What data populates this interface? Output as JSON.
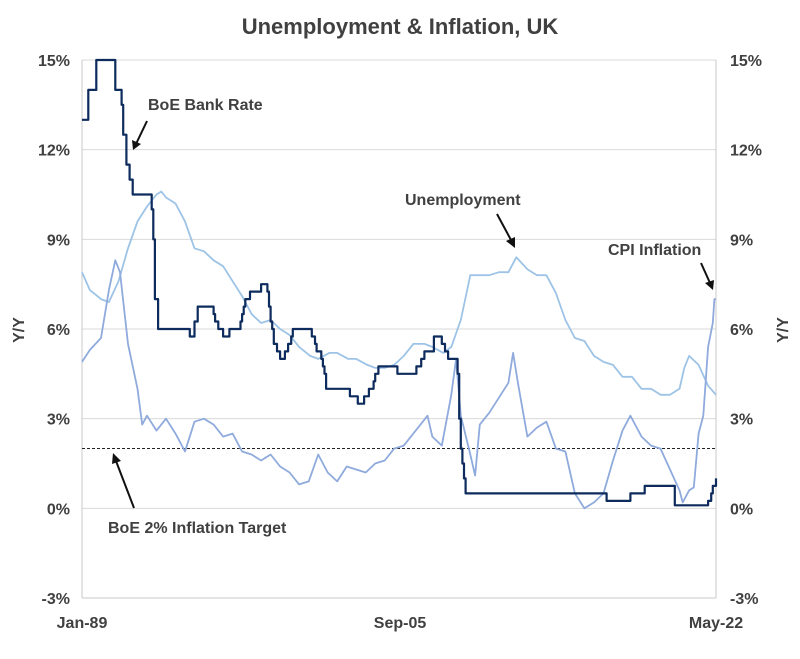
{
  "chart_data": {
    "type": "line",
    "title": "Unemployment & Inflation, UK",
    "xlabel": "",
    "ylabel": "Y/Y",
    "ylabel_right": "Y/Y",
    "x_start": "1989-01",
    "x_end": "2022-05",
    "x_tick_labels": [
      "Jan-89",
      "Sep-05",
      "May-22"
    ],
    "ylim": [
      -3,
      15
    ],
    "y_ticks": [
      -3,
      0,
      3,
      6,
      9,
      12,
      15
    ],
    "y_tick_labels": [
      "-3%",
      "0%",
      "3%",
      "6%",
      "9%",
      "12%",
      "15%"
    ],
    "grid": "horizontal",
    "reference_line": {
      "value": 2.0,
      "style": "dashed"
    },
    "series": [
      {
        "key": "bank_rate",
        "color": "#0d2b5c",
        "step": true,
        "points": [
          [
            "1989-01",
            13
          ],
          [
            "1989-05",
            14
          ],
          [
            "1989-10",
            15
          ],
          [
            "1990-10",
            14
          ],
          [
            "1991-02",
            13.5
          ],
          [
            "1991-03",
            12.5
          ],
          [
            "1991-05",
            11.5
          ],
          [
            "1991-07",
            11
          ],
          [
            "1991-09",
            10.5
          ],
          [
            "1992-09",
            10
          ],
          [
            "1992-10",
            9
          ],
          [
            "1992-11",
            7
          ],
          [
            "1993-01",
            6
          ],
          [
            "1994-09",
            5.75
          ],
          [
            "1994-12",
            6.25
          ],
          [
            "1995-02",
            6.75
          ],
          [
            "1995-12",
            6.5
          ],
          [
            "1996-01",
            6.25
          ],
          [
            "1996-03",
            6
          ],
          [
            "1996-06",
            5.75
          ],
          [
            "1996-10",
            6
          ],
          [
            "1997-05",
            6.25
          ],
          [
            "1997-06",
            6.5
          ],
          [
            "1997-07",
            6.75
          ],
          [
            "1997-08",
            7
          ],
          [
            "1997-11",
            7.25
          ],
          [
            "1998-06",
            7.5
          ],
          [
            "1998-10",
            7.25
          ],
          [
            "1998-11",
            6.75
          ],
          [
            "1998-12",
            6.25
          ],
          [
            "1999-01",
            6
          ],
          [
            "1999-02",
            5.5
          ],
          [
            "1999-04",
            5.25
          ],
          [
            "1999-06",
            5
          ],
          [
            "1999-09",
            5.25
          ],
          [
            "1999-11",
            5.5
          ],
          [
            "2000-01",
            5.75
          ],
          [
            "2000-02",
            6
          ],
          [
            "2001-02",
            5.75
          ],
          [
            "2001-04",
            5.5
          ],
          [
            "2001-05",
            5.25
          ],
          [
            "2001-08",
            5
          ],
          [
            "2001-09",
            4.75
          ],
          [
            "2001-10",
            4.5
          ],
          [
            "2001-11",
            4
          ],
          [
            "2003-02",
            3.75
          ],
          [
            "2003-07",
            3.5
          ],
          [
            "2003-11",
            3.75
          ],
          [
            "2004-02",
            4
          ],
          [
            "2004-05",
            4.25
          ],
          [
            "2004-06",
            4.5
          ],
          [
            "2004-08",
            4.75
          ],
          [
            "2005-08",
            4.5
          ],
          [
            "2006-08",
            4.75
          ],
          [
            "2006-11",
            5
          ],
          [
            "2007-01",
            5.25
          ],
          [
            "2007-07",
            5.75
          ],
          [
            "2007-12",
            5.5
          ],
          [
            "2008-02",
            5.25
          ],
          [
            "2008-04",
            5
          ],
          [
            "2008-10",
            4.5
          ],
          [
            "2008-11",
            3
          ],
          [
            "2008-12",
            2
          ],
          [
            "2009-01",
            1.5
          ],
          [
            "2009-02",
            1
          ],
          [
            "2009-03",
            0.5
          ],
          [
            "2016-08",
            0.25
          ],
          [
            "2017-11",
            0.5
          ],
          [
            "2018-08",
            0.75
          ],
          [
            "2020-03",
            0.1
          ],
          [
            "2021-12",
            0.25
          ],
          [
            "2022-02",
            0.5
          ],
          [
            "2022-03",
            0.75
          ],
          [
            "2022-05",
            1
          ]
        ]
      },
      {
        "key": "unemployment",
        "color": "#9dc3e6",
        "step": false,
        "points": [
          [
            "1989-01",
            7.9
          ],
          [
            "1989-06",
            7.3
          ],
          [
            "1990-01",
            7.0
          ],
          [
            "1990-06",
            6.9
          ],
          [
            "1990-12",
            7.6
          ],
          [
            "1991-06",
            8.7
          ],
          [
            "1991-12",
            9.6
          ],
          [
            "1992-06",
            10.1
          ],
          [
            "1992-12",
            10.5
          ],
          [
            "1993-03",
            10.6
          ],
          [
            "1993-06",
            10.4
          ],
          [
            "1993-12",
            10.2
          ],
          [
            "1994-06",
            9.6
          ],
          [
            "1994-12",
            8.7
          ],
          [
            "1995-06",
            8.6
          ],
          [
            "1995-12",
            8.3
          ],
          [
            "1996-06",
            8.1
          ],
          [
            "1996-12",
            7.6
          ],
          [
            "1997-06",
            7.1
          ],
          [
            "1997-12",
            6.5
          ],
          [
            "1998-06",
            6.2
          ],
          [
            "1998-12",
            6.3
          ],
          [
            "1999-06",
            6.0
          ],
          [
            "1999-12",
            5.8
          ],
          [
            "2000-06",
            5.4
          ],
          [
            "2001-01",
            5.1
          ],
          [
            "2001-06",
            5.0
          ],
          [
            "2002-01",
            5.2
          ],
          [
            "2002-06",
            5.2
          ],
          [
            "2003-01",
            5.0
          ],
          [
            "2003-06",
            5.0
          ],
          [
            "2004-01",
            4.8
          ],
          [
            "2004-06",
            4.7
          ],
          [
            "2004-12",
            4.7
          ],
          [
            "2005-06",
            4.8
          ],
          [
            "2005-12",
            5.1
          ],
          [
            "2006-06",
            5.5
          ],
          [
            "2007-01",
            5.5
          ],
          [
            "2007-06",
            5.4
          ],
          [
            "2008-01",
            5.2
          ],
          [
            "2008-06",
            5.4
          ],
          [
            "2008-12",
            6.3
          ],
          [
            "2009-06",
            7.8
          ],
          [
            "2009-12",
            7.8
          ],
          [
            "2010-06",
            7.8
          ],
          [
            "2010-12",
            7.9
          ],
          [
            "2011-06",
            7.9
          ],
          [
            "2011-11",
            8.4
          ],
          [
            "2012-06",
            8.0
          ],
          [
            "2012-12",
            7.8
          ],
          [
            "2013-06",
            7.8
          ],
          [
            "2013-12",
            7.2
          ],
          [
            "2014-06",
            6.3
          ],
          [
            "2014-12",
            5.7
          ],
          [
            "2015-06",
            5.6
          ],
          [
            "2015-12",
            5.1
          ],
          [
            "2016-06",
            4.9
          ],
          [
            "2016-12",
            4.8
          ],
          [
            "2017-06",
            4.4
          ],
          [
            "2017-12",
            4.4
          ],
          [
            "2018-06",
            4.0
          ],
          [
            "2018-12",
            4.0
          ],
          [
            "2019-06",
            3.8
          ],
          [
            "2019-12",
            3.8
          ],
          [
            "2020-06",
            4.0
          ],
          [
            "2020-09",
            4.7
          ],
          [
            "2020-12",
            5.1
          ],
          [
            "2021-06",
            4.8
          ],
          [
            "2021-12",
            4.1
          ],
          [
            "2022-05",
            3.8
          ]
        ]
      },
      {
        "key": "cpi",
        "color": "#8faadc",
        "step": false,
        "points": [
          [
            "1989-01",
            4.9
          ],
          [
            "1989-06",
            5.3
          ],
          [
            "1990-01",
            5.7
          ],
          [
            "1990-06",
            7.3
          ],
          [
            "1990-10",
            8.3
          ],
          [
            "1991-01",
            7.9
          ],
          [
            "1991-06",
            5.5
          ],
          [
            "1991-12",
            4.0
          ],
          [
            "1992-03",
            2.8
          ],
          [
            "1992-06",
            3.1
          ],
          [
            "1992-12",
            2.6
          ],
          [
            "1993-06",
            3.0
          ],
          [
            "1993-12",
            2.5
          ],
          [
            "1994-06",
            1.9
          ],
          [
            "1994-12",
            2.9
          ],
          [
            "1995-06",
            3.0
          ],
          [
            "1995-12",
            2.8
          ],
          [
            "1996-06",
            2.4
          ],
          [
            "1996-12",
            2.5
          ],
          [
            "1997-06",
            1.9
          ],
          [
            "1997-12",
            1.8
          ],
          [
            "1998-06",
            1.6
          ],
          [
            "1998-12",
            1.8
          ],
          [
            "1999-06",
            1.4
          ],
          [
            "1999-12",
            1.2
          ],
          [
            "2000-06",
            0.8
          ],
          [
            "2000-12",
            0.9
          ],
          [
            "2001-06",
            1.8
          ],
          [
            "2001-12",
            1.2
          ],
          [
            "2002-06",
            0.9
          ],
          [
            "2002-12",
            1.4
          ],
          [
            "2003-06",
            1.3
          ],
          [
            "2003-12",
            1.2
          ],
          [
            "2004-06",
            1.5
          ],
          [
            "2004-12",
            1.6
          ],
          [
            "2005-06",
            2.0
          ],
          [
            "2005-12",
            2.1
          ],
          [
            "2006-06",
            2.5
          ],
          [
            "2006-12",
            2.9
          ],
          [
            "2007-03",
            3.1
          ],
          [
            "2007-06",
            2.4
          ],
          [
            "2007-12",
            2.1
          ],
          [
            "2008-06",
            3.8
          ],
          [
            "2008-09",
            5.0
          ],
          [
            "2008-12",
            3.1
          ],
          [
            "2009-06",
            1.8
          ],
          [
            "2009-09",
            1.1
          ],
          [
            "2009-12",
            2.8
          ],
          [
            "2010-06",
            3.2
          ],
          [
            "2010-12",
            3.7
          ],
          [
            "2011-06",
            4.2
          ],
          [
            "2011-09",
            5.2
          ],
          [
            "2011-12",
            4.2
          ],
          [
            "2012-06",
            2.4
          ],
          [
            "2012-12",
            2.7
          ],
          [
            "2013-06",
            2.9
          ],
          [
            "2013-12",
            2.0
          ],
          [
            "2014-06",
            1.9
          ],
          [
            "2014-12",
            0.5
          ],
          [
            "2015-06",
            0.0
          ],
          [
            "2015-12",
            0.2
          ],
          [
            "2016-06",
            0.5
          ],
          [
            "2016-12",
            1.6
          ],
          [
            "2017-06",
            2.6
          ],
          [
            "2017-11",
            3.1
          ],
          [
            "2018-06",
            2.4
          ],
          [
            "2018-12",
            2.1
          ],
          [
            "2019-06",
            2.0
          ],
          [
            "2019-12",
            1.3
          ],
          [
            "2020-06",
            0.6
          ],
          [
            "2020-08",
            0.2
          ],
          [
            "2020-12",
            0.6
          ],
          [
            "2021-03",
            0.7
          ],
          [
            "2021-06",
            2.5
          ],
          [
            "2021-09",
            3.1
          ],
          [
            "2021-12",
            5.4
          ],
          [
            "2022-03",
            6.2
          ],
          [
            "2022-04",
            7.0
          ],
          [
            "2022-05",
            7.0
          ]
        ]
      }
    ],
    "annotations": [
      {
        "key": "bank_rate",
        "text": "BoE Bank Rate"
      },
      {
        "key": "unemployment",
        "text": "Unemployment"
      },
      {
        "key": "cpi",
        "text": "CPI Inflation"
      },
      {
        "key": "target",
        "text": "BoE 2% Inflation Target"
      }
    ]
  }
}
